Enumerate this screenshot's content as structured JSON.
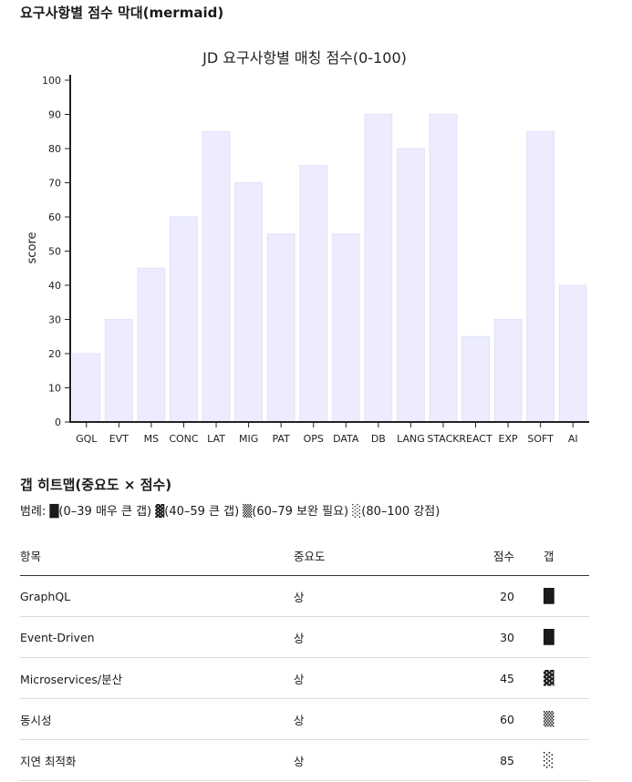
{
  "page": {
    "chart_heading": "요구사항별 점수 막대(mermaid)",
    "heatmap_heading": "갭 히트맵(중요도 × 점수)",
    "legend": "범례: █(0–39 매우 큰 갭) ▓(40–59 큰 갭) ▒(60–79 보완 필요) ░(80–100 강점)"
  },
  "chart_data": {
    "type": "bar",
    "title": "JD 요구사항별 매칭 점수(0-100)",
    "xlabel": "",
    "ylabel": "score",
    "ylim": [
      0,
      100
    ],
    "yticks": [
      0,
      10,
      20,
      30,
      40,
      50,
      60,
      70,
      80,
      90,
      100
    ],
    "categories": [
      "GQL",
      "EVT",
      "MS",
      "CONC",
      "LAT",
      "MIG",
      "PAT",
      "OPS",
      "DATA",
      "DB",
      "LANG",
      "STACK",
      "REACT",
      "EXP",
      "SOFT",
      "AI"
    ],
    "values": [
      20,
      30,
      45,
      60,
      85,
      70,
      55,
      75,
      55,
      90,
      80,
      90,
      25,
      30,
      85,
      40
    ],
    "bar_color": "#ececfe",
    "bar_stroke": "#e2e2fb"
  },
  "table": {
    "headers": [
      "항목",
      "중요도",
      "점수",
      "갭"
    ],
    "rows": [
      {
        "item": "GraphQL",
        "importance": "상",
        "score": "20",
        "gap": "█"
      },
      {
        "item": "Event-Driven",
        "importance": "상",
        "score": "30",
        "gap": "█"
      },
      {
        "item": "Microservices/분산",
        "importance": "상",
        "score": "45",
        "gap": "▓"
      },
      {
        "item": "동시성",
        "importance": "상",
        "score": "60",
        "gap": "▒"
      },
      {
        "item": "지연 최적화",
        "importance": "상",
        "score": "85",
        "gap": "░"
      }
    ]
  }
}
